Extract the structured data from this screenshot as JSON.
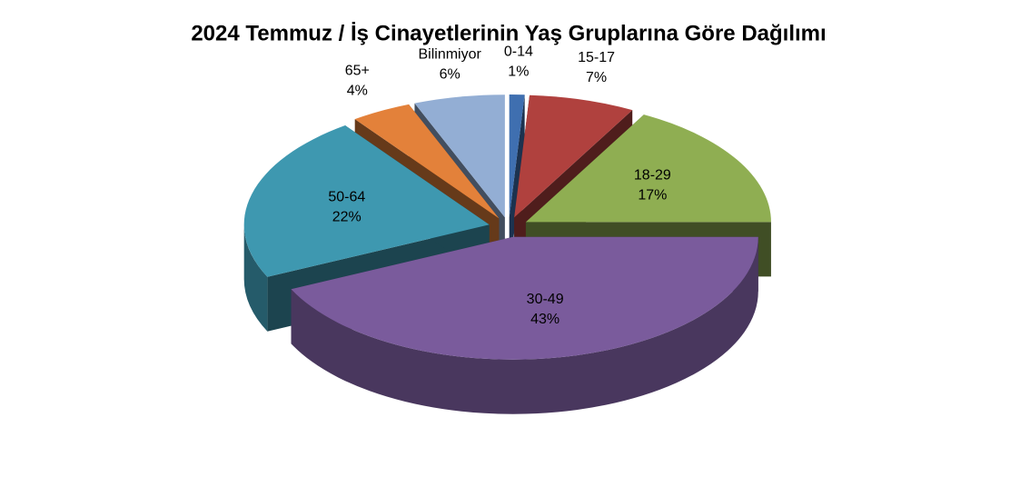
{
  "chart_data": {
    "type": "pie3d",
    "title": "2024 Temmuz / İş Cinayetlerinin Yaş Gruplarına Göre Dağılımı",
    "categories": [
      "0-14",
      "15-17",
      "18-29",
      "30-49",
      "50-64",
      "65+",
      "Bilinmiyor"
    ],
    "values": [
      1,
      7,
      17,
      43,
      22,
      4,
      6
    ],
    "value_labels": [
      "1%",
      "7%",
      "17%",
      "43%",
      "22%",
      "4%",
      "6%"
    ],
    "colors": [
      "#3f6fb0",
      "#b0413e",
      "#8fae52",
      "#7a5b9c",
      "#3e98b0",
      "#e3813a",
      "#93aed4"
    ]
  }
}
